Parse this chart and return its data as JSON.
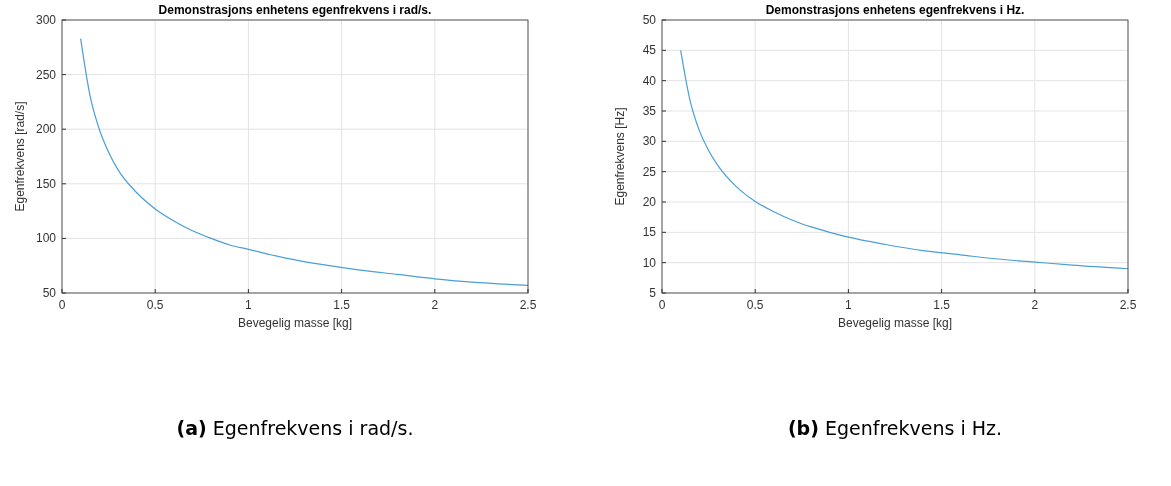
{
  "chart_data": [
    {
      "type": "line",
      "title": "Demonstrasjons enhetens egenfrekvens i rad/s.",
      "xlabel": "Bevegelig masse [kg]",
      "ylabel": "Egenfrekvens [rad/s]",
      "annotations": [
        "(a) Egenfrekvens i rad/s."
      ],
      "x": [
        0.1,
        0.15,
        0.2,
        0.25,
        0.3,
        0.4,
        0.5,
        0.6,
        0.7,
        0.8,
        0.9,
        1.0,
        1.2,
        1.4,
        1.6,
        1.8,
        2.0,
        2.2,
        2.5
      ],
      "series": [
        {
          "color": "#4a9fd5",
          "values": [
            283,
            231,
            200,
            179,
            163,
            142,
            127,
            116,
            107,
            100,
            94,
            90,
            82,
            76,
            71,
            67,
            63,
            60,
            57
          ]
        }
      ],
      "xlim": [
        0,
        2.5
      ],
      "xticks": [
        0,
        0.5,
        1,
        1.5,
        2,
        2.5
      ],
      "ylim": [
        50,
        300
      ],
      "yticks": [
        50,
        100,
        150,
        200,
        250,
        300
      ],
      "grid": true
    },
    {
      "type": "line",
      "title": "Demonstrasjons enhetens egenfrekvens i Hz.",
      "xlabel": "Bevegelig masse [kg]",
      "ylabel": "Egenfrekvens [Hz]",
      "annotations": [
        "(b) Egenfrekvens i Hz."
      ],
      "x": [
        0.1,
        0.15,
        0.2,
        0.25,
        0.3,
        0.4,
        0.5,
        0.6,
        0.7,
        0.8,
        0.9,
        1.0,
        1.2,
        1.4,
        1.6,
        1.8,
        2.0,
        2.2,
        2.5
      ],
      "series": [
        {
          "color": "#4a9fd5",
          "values": [
            45,
            36.8,
            31.8,
            28.5,
            26,
            22.5,
            20.1,
            18.4,
            17,
            15.9,
            15,
            14.2,
            13,
            12,
            11.3,
            10.6,
            10.1,
            9.6,
            9.0
          ]
        }
      ],
      "xlim": [
        0,
        2.5
      ],
      "xticks": [
        0,
        0.5,
        1,
        1.5,
        2,
        2.5
      ],
      "ylim": [
        5,
        50
      ],
      "yticks": [
        5,
        10,
        15,
        20,
        25,
        30,
        35,
        40,
        45,
        50
      ],
      "grid": true
    }
  ]
}
